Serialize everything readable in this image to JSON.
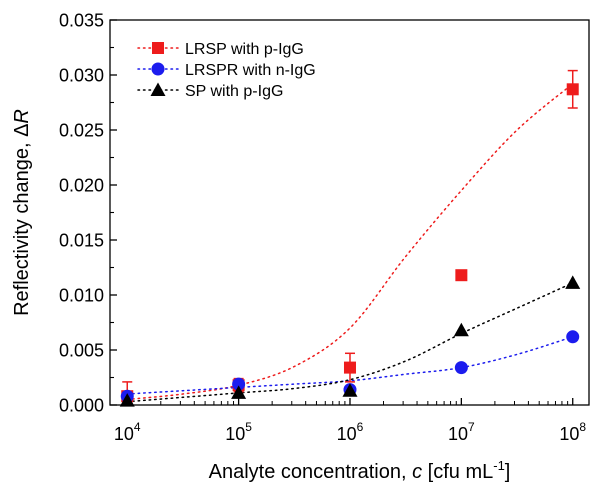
{
  "chart_data": {
    "type": "scatter",
    "xlabel_parts": [
      "Analyte concentration, ",
      "c",
      " [cfu mL",
      "-1",
      "]"
    ],
    "ylabel_parts": [
      "Reflectivity change, ",
      "Δ",
      "R"
    ],
    "x_scale": "log",
    "xlim": [
      7000,
      140000000
    ],
    "ylim": [
      0,
      0.035
    ],
    "x_ticks": [
      {
        "value": 10000,
        "base": "10",
        "exp": "4"
      },
      {
        "value": 100000,
        "base": "10",
        "exp": "5"
      },
      {
        "value": 1000000,
        "base": "10",
        "exp": "6"
      },
      {
        "value": 10000000,
        "base": "10",
        "exp": "7"
      },
      {
        "value": 100000000,
        "base": "10",
        "exp": "8"
      }
    ],
    "y_ticks": [
      {
        "value": 0.0,
        "label": "0.000"
      },
      {
        "value": 0.005,
        "label": "0.005"
      },
      {
        "value": 0.01,
        "label": "0.010"
      },
      {
        "value": 0.015,
        "label": "0.015"
      },
      {
        "value": 0.02,
        "label": "0.020"
      },
      {
        "value": 0.025,
        "label": "0.025"
      },
      {
        "value": 0.03,
        "label": "0.030"
      },
      {
        "value": 0.035,
        "label": "0.035"
      }
    ],
    "grid": false,
    "legend_position": "top-left",
    "series": [
      {
        "name": "LRSP with p-IgG",
        "marker": "square",
        "color": "#ee1c1c",
        "x": [
          10000,
          100000,
          1000000,
          10000000,
          100000000
        ],
        "y": [
          0.0008,
          0.0018,
          0.0034,
          0.0118,
          0.0287
        ],
        "err": [
          0.0013,
          0.0006,
          0.0013,
          0.0,
          0.0017
        ],
        "fit": [
          0.0005,
          0.001,
          0.0018,
          0.0035,
          0.007,
          0.0135,
          0.0195,
          0.025,
          0.0292
        ]
      },
      {
        "name": "LRSPR with n-IgG",
        "marker": "circle",
        "color": "#1c1cee",
        "x": [
          10000,
          100000,
          1000000,
          10000000,
          100000000
        ],
        "y": [
          0.0008,
          0.0019,
          0.0014,
          0.0034,
          0.0062
        ],
        "err": [
          0,
          0,
          0,
          0,
          0
        ],
        "fit": [
          0.001,
          0.0013,
          0.0016,
          0.0019,
          0.0022,
          0.0028,
          0.0034,
          0.0046,
          0.0062
        ]
      },
      {
        "name": "SP with p-IgG",
        "marker": "triangle",
        "color": "#000000",
        "x": [
          10000,
          100000,
          1000000,
          10000000,
          100000000
        ],
        "y": [
          0.0004,
          0.0011,
          0.0013,
          0.0068,
          0.0111
        ],
        "err": [
          0,
          0,
          0,
          0,
          0
        ],
        "fit": [
          0.0003,
          0.0007,
          0.0011,
          0.0015,
          0.0023,
          0.004,
          0.0065,
          0.0088,
          0.0111
        ]
      }
    ]
  }
}
